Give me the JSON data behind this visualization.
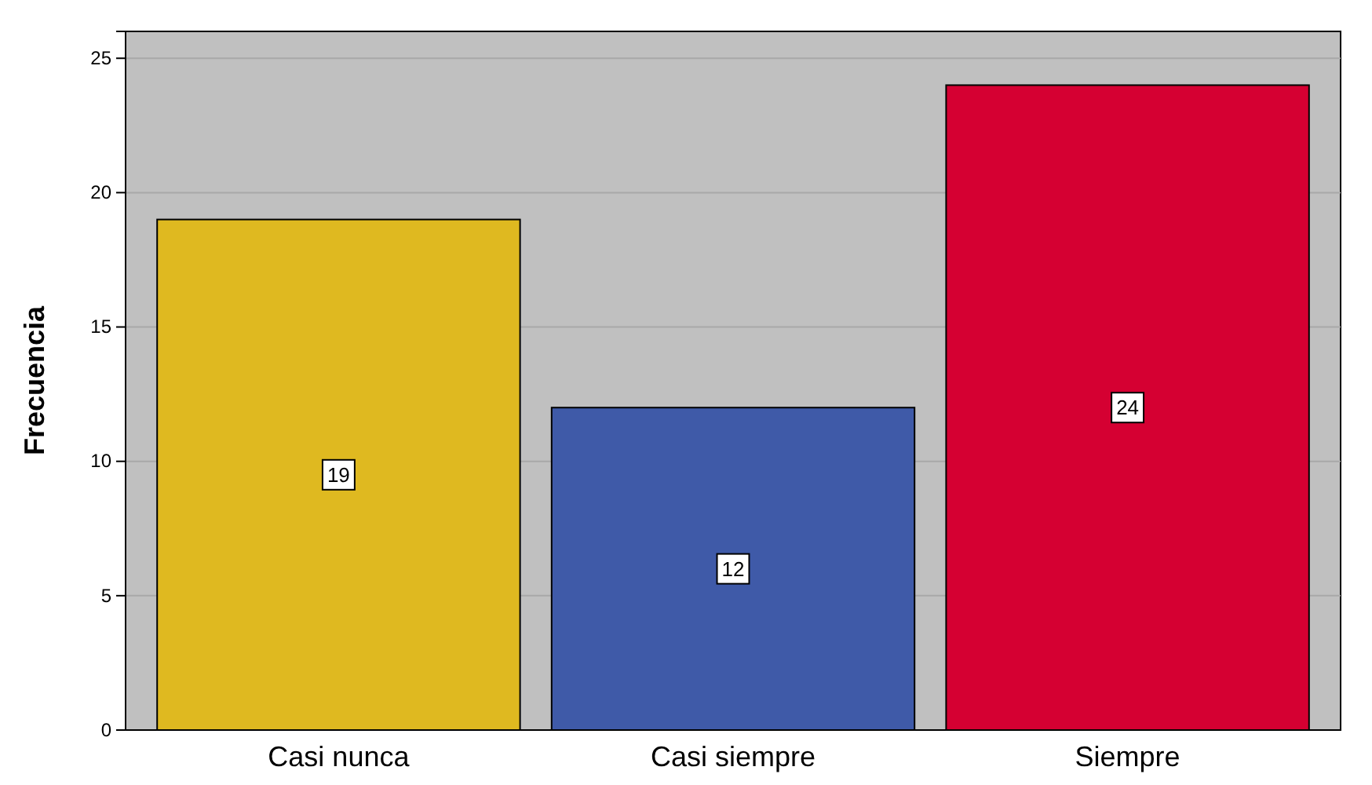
{
  "chart_data": {
    "type": "bar",
    "ylabel": "Frecuencia",
    "categories": [
      "Casi nunca",
      "Casi siempre",
      "Siempre"
    ],
    "values": [
      19,
      12,
      24
    ],
    "colors": [
      "#dfb920",
      "#3f5aa8",
      "#d50032"
    ],
    "ylim": [
      0,
      26
    ],
    "yticks": [
      0,
      5,
      10,
      15,
      20,
      25
    ],
    "grid": "y",
    "data_labels": true
  }
}
